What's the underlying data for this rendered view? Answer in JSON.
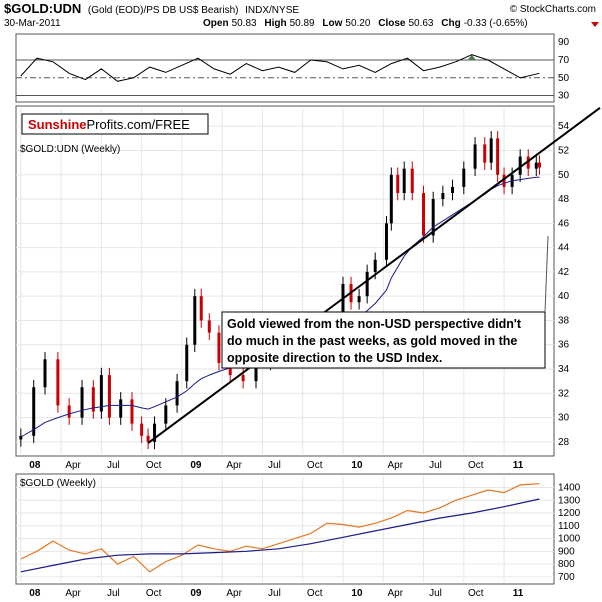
{
  "header": {
    "symbol": "$GOLD:UDN",
    "description": "(Gold (EOD)/PS DB US$ Bearish)",
    "exchange": "INDX/NYSE",
    "watermark": "© StockCharts.com",
    "date": "30-Mar-2011",
    "open_label": "Open",
    "open": "50.83",
    "high_label": "High",
    "high": "50.89",
    "low_label": "Low",
    "low": "50.20",
    "close_label": "Close",
    "close": "50.63",
    "chg_label": "Chg",
    "chg": "-0.33 (-0.65%)",
    "chg_icon": "triangle-down-icon",
    "chg_color": "#cc0000"
  },
  "logo": {
    "part1": "Sunshine",
    "part2": "Profits.com/FREE",
    "part1_color": "#cc0000"
  },
  "annotation": "Gold viewed from the non-USD perspective didn't do much in the past weeks, as gold moved in the opposite direction to the USD Index.",
  "annotation_lines": [
    "Gold viewed from the non-USD perspective didn't",
    "do much in the past weeks, as gold moved in the",
    "opposite direction to the USD Index."
  ],
  "chart_data": [
    {
      "type": "line",
      "panel": "indicator",
      "ylim": [
        25,
        97
      ],
      "yticks": [
        30,
        50,
        70,
        90
      ],
      "reference_lines": [
        70,
        50,
        30
      ],
      "overbought_fill_color": "#4a7a4a",
      "x": [
        2008.0,
        2008.1,
        2008.2,
        2008.3,
        2008.4,
        2008.5,
        2008.6,
        2008.7,
        2008.8,
        2008.9,
        2009.0,
        2009.1,
        2009.2,
        2009.3,
        2009.4,
        2009.5,
        2009.6,
        2009.7,
        2009.8,
        2009.9,
        2010.0,
        2010.1,
        2010.2,
        2010.3,
        2010.4,
        2010.5,
        2010.6,
        2010.7,
        2010.8,
        2010.9,
        2011.0,
        2011.1,
        2011.22
      ],
      "values": [
        52,
        72,
        68,
        55,
        48,
        60,
        46,
        50,
        62,
        56,
        64,
        72,
        60,
        54,
        66,
        58,
        62,
        56,
        70,
        68,
        60,
        64,
        56,
        66,
        72,
        58,
        62,
        68,
        76,
        70,
        60,
        50,
        55
      ]
    },
    {
      "type": "candlestick",
      "panel": "price",
      "title": "$GOLD:UDN (Weekly)",
      "ylim": [
        27,
        55.5
      ],
      "yticks": [
        28,
        30,
        32,
        34,
        36,
        38,
        40,
        42,
        44,
        46,
        48,
        50,
        52,
        54
      ],
      "x_ticks": [
        "08",
        "Apr",
        "Jul",
        "Oct",
        "09",
        "Apr",
        "Jul",
        "Oct",
        "10",
        "Apr",
        "Jul",
        "Oct",
        "11"
      ],
      "x_tick_values": [
        2008.0,
        2008.25,
        2008.5,
        2008.75,
        2009.0,
        2009.25,
        2009.5,
        2009.75,
        2010.0,
        2010.25,
        2010.5,
        2010.75,
        2011.0
      ],
      "x_tick_bold": [
        true,
        false,
        false,
        false,
        true,
        false,
        false,
        false,
        true,
        false,
        false,
        false,
        true
      ],
      "xlim": [
        2007.97,
        2011.31
      ],
      "up_color": "#000000",
      "down_color": "#cc0000",
      "ma_color": "#1a1a8c",
      "trendline": {
        "start": [
          2008.79,
          27.9
        ],
        "end": [
          2011.31,
          53.7
        ]
      },
      "x": [
        2008.0,
        2008.08,
        2008.15,
        2008.23,
        2008.3,
        2008.38,
        2008.45,
        2008.5,
        2008.55,
        2008.62,
        2008.69,
        2008.75,
        2008.79,
        2008.83,
        2008.9,
        2008.97,
        2009.03,
        2009.08,
        2009.12,
        2009.17,
        2009.23,
        2009.3,
        2009.38,
        2009.46,
        2009.55,
        2009.63,
        2009.7,
        2009.78,
        2009.85,
        2009.92,
        2010.0,
        2010.05,
        2010.1,
        2010.15,
        2010.2,
        2010.27,
        2010.3,
        2010.34,
        2010.38,
        2010.43,
        2010.5,
        2010.56,
        2010.62,
        2010.68,
        2010.75,
        2010.82,
        2010.88,
        2010.92,
        2010.96,
        2011.0,
        2011.05,
        2011.1,
        2011.15,
        2011.2,
        2011.22
      ],
      "values": [
        28.5,
        32.5,
        34.8,
        31.0,
        30.0,
        32.5,
        30.5,
        33.5,
        30.0,
        31.5,
        29.5,
        28.5,
        28.0,
        29.5,
        31.0,
        33.0,
        36.0,
        40.0,
        38.0,
        37.0,
        34.5,
        33.5,
        33.0,
        34.5,
        35.0,
        36.0,
        37.0,
        37.5,
        38.0,
        38.0,
        41.0,
        39.5,
        40.0,
        42.0,
        43.0,
        46.0,
        50.0,
        48.5,
        50.5,
        48.5,
        45.0,
        48.0,
        48.5,
        49.0,
        50.5,
        52.5,
        51.0,
        53.0,
        50.0,
        49.0,
        50.0,
        51.5,
        50.5,
        51.0,
        50.6
      ],
      "ma_values": [
        28.4,
        29.0,
        29.6,
        30.0,
        30.3,
        30.6,
        30.8,
        30.9,
        31.0,
        31.0,
        31.0,
        30.8,
        30.7,
        30.9,
        31.3,
        31.7,
        32.2,
        32.8,
        33.2,
        33.5,
        33.8,
        34.1,
        34.3,
        34.5,
        34.7,
        35.0,
        35.3,
        35.6,
        35.9,
        36.3,
        37.1,
        37.6,
        38.2,
        38.8,
        39.4,
        40.5,
        41.5,
        42.4,
        43.3,
        44.1,
        44.9,
        45.7,
        46.2,
        46.7,
        47.3,
        47.9,
        48.4,
        48.8,
        49.1,
        49.3,
        49.5,
        49.6,
        49.7,
        49.8,
        49.8
      ]
    },
    {
      "type": "line",
      "panel": "comparison",
      "title": "$GOLD (Weekly)",
      "ylim": [
        660,
        1490
      ],
      "yticks": [
        700,
        800,
        900,
        1000,
        1100,
        1200,
        1300,
        1400
      ],
      "x_ticks": [
        "08",
        "Apr",
        "Jul",
        "Oct",
        "09",
        "Apr",
        "Jul",
        "Oct",
        "10",
        "Apr",
        "Jul",
        "Oct",
        "11"
      ],
      "series": [
        {
          "color": "#e87722",
          "x": [
            2008.0,
            2008.1,
            2008.2,
            2008.3,
            2008.4,
            2008.5,
            2008.6,
            2008.7,
            2008.8,
            2008.9,
            2009.0,
            2009.1,
            2009.2,
            2009.3,
            2009.4,
            2009.5,
            2009.6,
            2009.7,
            2009.8,
            2009.9,
            2010.0,
            2010.1,
            2010.2,
            2010.3,
            2010.4,
            2010.5,
            2010.6,
            2010.7,
            2010.8,
            2010.9,
            2011.0,
            2011.1,
            2011.22
          ],
          "values": [
            840,
            900,
            980,
            910,
            880,
            920,
            800,
            860,
            740,
            820,
            870,
            950,
            920,
            900,
            940,
            920,
            960,
            1000,
            1040,
            1120,
            1110,
            1090,
            1120,
            1160,
            1220,
            1200,
            1240,
            1300,
            1340,
            1380,
            1360,
            1420,
            1430
          ]
        },
        {
          "color": "#1a1a8c",
          "x": [
            2008.0,
            2008.2,
            2008.4,
            2008.6,
            2008.8,
            2009.0,
            2009.2,
            2009.4,
            2009.6,
            2009.8,
            2010.0,
            2010.2,
            2010.4,
            2010.6,
            2010.8,
            2011.0,
            2011.22
          ],
          "values": [
            740,
            790,
            840,
            870,
            880,
            880,
            890,
            900,
            920,
            960,
            1010,
            1060,
            1110,
            1160,
            1200,
            1250,
            1310
          ]
        }
      ]
    }
  ]
}
